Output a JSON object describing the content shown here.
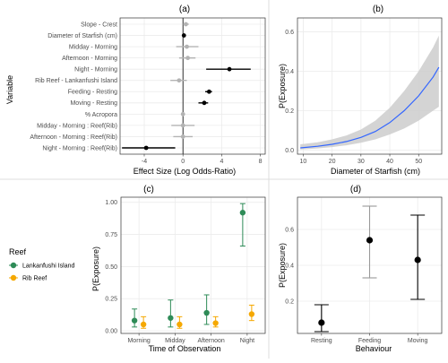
{
  "chart_data": [
    {
      "panel": "(a)",
      "type": "forest",
      "xlabel": "Effect Size (Log Odds-Ratio)",
      "ylabel": "Variable",
      "xlim": [
        -6.5,
        8.5
      ],
      "xticks": [
        -4,
        0,
        4,
        8
      ],
      "vline_at": 0,
      "rows": [
        {
          "label": "Slope - Crest",
          "est": 0.3,
          "lo": 0.0,
          "hi": 0.6,
          "significant": false
        },
        {
          "label": "Diameter of Starfish (cm)",
          "est": 0.1,
          "lo": 0.0,
          "hi": 0.2,
          "significant": true
        },
        {
          "label": "Midday - Morning",
          "est": 0.4,
          "lo": -0.7,
          "hi": 1.6,
          "significant": false
        },
        {
          "label": "Afternoon - Morning",
          "est": 0.5,
          "lo": -0.4,
          "hi": 1.3,
          "significant": false
        },
        {
          "label": "Night - Morning",
          "est": 4.8,
          "lo": 2.4,
          "hi": 7.0,
          "significant": true
        },
        {
          "label": "Rib Reef - Lankanfushi Island",
          "est": -0.4,
          "lo": -1.3,
          "hi": 0.4,
          "significant": false
        },
        {
          "label": "Feeding - Resting",
          "est": 2.7,
          "lo": 2.3,
          "hi": 3.0,
          "significant": true
        },
        {
          "label": "Moving - Resting",
          "est": 2.2,
          "lo": 1.6,
          "hi": 2.6,
          "significant": true
        },
        {
          "label": "% Acropora",
          "est": 0.0,
          "lo": -0.05,
          "hi": 0.05,
          "significant": false
        },
        {
          "label": "Midday - Morning : Reef(Rib)",
          "est": 0.0,
          "lo": -1.2,
          "hi": 1.2,
          "significant": false
        },
        {
          "label": "Afternoon - Morning : Reef(Rib)",
          "est": 0.0,
          "lo": -1.0,
          "hi": 1.0,
          "significant": false
        },
        {
          "label": "Night - Morning : Reef(Rib)",
          "est": -3.8,
          "lo": -6.3,
          "hi": -0.8,
          "significant": true
        }
      ]
    },
    {
      "panel": "(b)",
      "type": "line",
      "xlabel": "Diameter of Starfish (cm)",
      "ylabel": "P(Exposure)",
      "xlim": [
        8,
        58
      ],
      "ylim": [
        -0.02,
        0.67
      ],
      "xticks": [
        10,
        20,
        30,
        40,
        50
      ],
      "yticks": [
        0.0,
        0.2,
        0.4,
        0.6
      ],
      "x": [
        9,
        15,
        20,
        25,
        30,
        35,
        40,
        45,
        50,
        55,
        57
      ],
      "fit": [
        0.012,
        0.02,
        0.03,
        0.044,
        0.065,
        0.095,
        0.14,
        0.2,
        0.275,
        0.37,
        0.42
      ],
      "lower": [
        0.004,
        0.009,
        0.016,
        0.025,
        0.038,
        0.055,
        0.08,
        0.11,
        0.15,
        0.2,
        0.22
      ],
      "upper": [
        0.03,
        0.04,
        0.055,
        0.075,
        0.105,
        0.15,
        0.215,
        0.3,
        0.4,
        0.52,
        0.58
      ]
    },
    {
      "panel": "(c)",
      "type": "pointrange",
      "xlabel": "Time of Observation",
      "ylabel": "P(Exposure)",
      "categories": [
        "Morning",
        "Midday",
        "Afternoon",
        "Night"
      ],
      "ylim": [
        -0.02,
        1.04
      ],
      "yticks": [
        0.0,
        0.25,
        0.5,
        0.75,
        1.0
      ],
      "ytick_labels": [
        "0.00",
        "0.25",
        "0.50",
        "0.75",
        "1.00"
      ],
      "legend_title": "Reef",
      "legend_position": "left",
      "series": [
        {
          "name": "Lankanfushi Island",
          "color": "#2e8b57",
          "values": [
            0.08,
            0.1,
            0.14,
            0.92
          ],
          "lo": [
            0.03,
            0.03,
            0.05,
            0.66
          ],
          "hi": [
            0.17,
            0.24,
            0.28,
            0.99
          ]
        },
        {
          "name": "Rib Reef",
          "color": "#f5a800",
          "values": [
            0.05,
            0.05,
            0.06,
            0.13
          ],
          "lo": [
            0.02,
            0.02,
            0.03,
            0.08
          ],
          "hi": [
            0.11,
            0.11,
            0.11,
            0.2
          ]
        }
      ]
    },
    {
      "panel": "(d)",
      "type": "pointrange",
      "xlabel": "Behaviour",
      "ylabel": "P(Exposure)",
      "categories": [
        "Resting",
        "Feeding",
        "Moving"
      ],
      "ylim": [
        0.02,
        0.78
      ],
      "yticks": [
        0.2,
        0.4,
        0.6
      ],
      "series": [
        {
          "values": [
            0.08,
            0.54,
            0.43
          ],
          "lo": [
            0.03,
            0.33,
            0.21
          ],
          "hi": [
            0.18,
            0.73,
            0.68
          ],
          "colors": [
            "#000000",
            "#999999",
            "#000000"
          ]
        }
      ]
    }
  ]
}
